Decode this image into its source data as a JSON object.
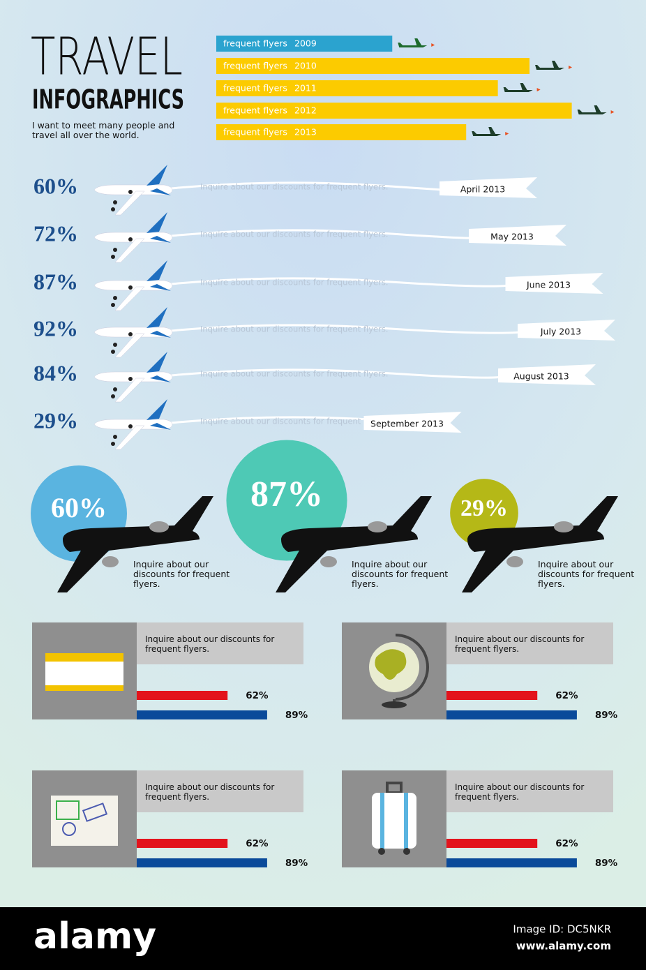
{
  "header": {
    "title": "TRAVEL",
    "subtitle": "INFOGRAPHICS",
    "tagline": "I want to meet many people and travel all over the world."
  },
  "chart_data": [
    {
      "type": "flyer-bars",
      "label": "frequent flyers",
      "categories": [
        "2009",
        "2010",
        "2011",
        "2012",
        "2013"
      ],
      "values": [
        50,
        89,
        80,
        101,
        71
      ],
      "colors": [
        "#2ba3cf",
        "#fccb00",
        "#fccb00",
        "#fccb00",
        "#fccb00"
      ],
      "xlim": [
        0,
        110
      ]
    },
    {
      "type": "banners",
      "values": [
        60,
        72,
        87,
        92,
        84,
        29
      ],
      "value_labels": [
        "60%",
        "72%",
        "87%",
        "92%",
        "84%",
        "29%"
      ],
      "categories": [
        "April 2013",
        "May 2013",
        "June 2013",
        "July 2013",
        "August 2013",
        "September 2013"
      ],
      "note": "Inquire about our discounts for frequent flyers."
    },
    {
      "type": "circles",
      "values": [
        60,
        87,
        29
      ],
      "value_labels": [
        "60%",
        "87%",
        "29%"
      ],
      "colors": [
        "#5ab4e0",
        "#4ec9b5",
        "#b5b817"
      ],
      "caption": "Inquire about our discounts for frequent flyers."
    },
    {
      "type": "panel-bars",
      "colors": [
        "#e3131c",
        "#0a4a9a"
      ],
      "xlim": [
        0,
        100
      ],
      "panels": [
        {
          "text": "Inquire about our discounts for frequent flyers.",
          "values": [
            62,
            89
          ],
          "value_labels": [
            "62%",
            "89%"
          ]
        },
        {
          "text": "Inquire about our discounts for frequent flyers.",
          "values": [
            62,
            89
          ],
          "value_labels": [
            "62%",
            "89%"
          ]
        },
        {
          "text": "Inquire about our discounts for frequent flyers.",
          "values": [
            62,
            89
          ],
          "value_labels": [
            "62%",
            "89%"
          ]
        },
        {
          "text": "Inquire about our discounts for frequent flyers.",
          "values": [
            62,
            89
          ],
          "value_labels": [
            "62%",
            "89%"
          ]
        }
      ]
    }
  ],
  "footer": {
    "brand": "alamy",
    "image_id": "Image ID: DC5NKR",
    "url": "www.alamy.com"
  }
}
